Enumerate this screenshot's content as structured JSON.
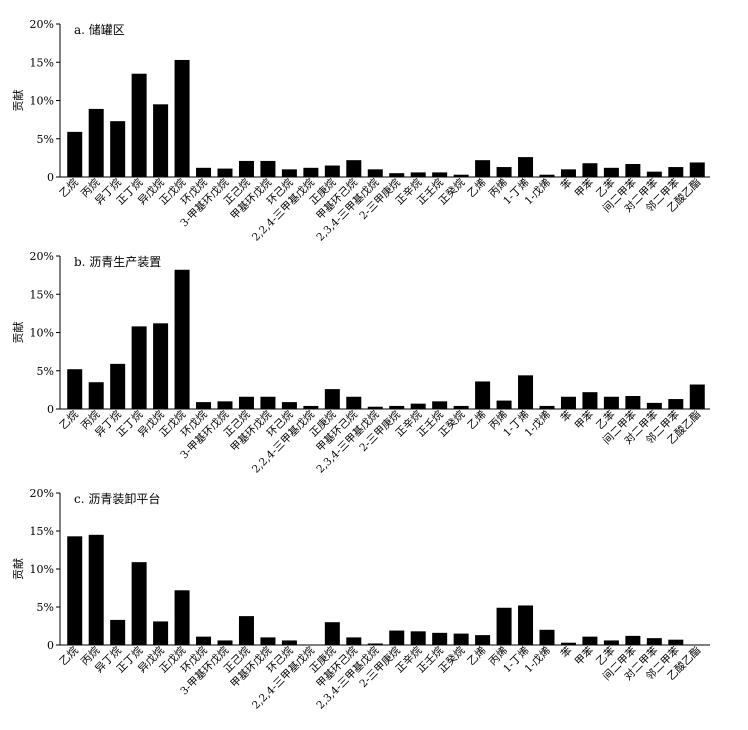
{
  "chart_data": [
    {
      "type": "bar",
      "title": "a. 储罐区",
      "ylabel": "贡献",
      "xlabel": "",
      "ylim": [
        0,
        20
      ],
      "yticks": [
        "0",
        "5%",
        "10%",
        "15%",
        "20%"
      ],
      "categories": [
        "乙烷",
        "丙烷",
        "异丁烷",
        "正丁烷",
        "异戊烷",
        "正戊烷",
        "环戊烷",
        "3-甲基环戊烷",
        "正己烷",
        "甲基环戊烷",
        "环己烷",
        "2,2,4-三甲基戊烷",
        "正庚烷",
        "甲基环己烷",
        "2,3,4-三甲基戊烷",
        "2-三甲庚烷",
        "正辛烷",
        "正壬烷",
        "正癸烷",
        "乙烯",
        "丙烯",
        "1-丁烯",
        "1-戊烯",
        "苯",
        "甲苯",
        "乙苯",
        "间二甲苯",
        "对二甲苯",
        "邻二甲苯",
        "乙酸乙酯"
      ],
      "values": [
        5.9,
        8.9,
        7.3,
        13.5,
        9.5,
        15.3,
        1.2,
        1.1,
        2.1,
        2.1,
        1.0,
        1.2,
        1.5,
        2.2,
        1.0,
        0.5,
        0.6,
        0.6,
        0.3,
        2.2,
        1.3,
        2.6,
        0.3,
        1.0,
        1.8,
        1.2,
        1.7,
        0.7,
        1.3,
        1.9
      ]
    },
    {
      "type": "bar",
      "title": "b. 沥青生产装置",
      "ylabel": "贡献",
      "xlabel": "",
      "ylim": [
        0,
        20
      ],
      "yticks": [
        "0",
        "5%",
        "10%",
        "15%",
        "20%"
      ],
      "categories": [
        "乙烷",
        "丙烷",
        "异丁烷",
        "正丁烷",
        "异戊烷",
        "正戊烷",
        "环戊烷",
        "3-甲基环戊烷",
        "正己烷",
        "甲基环戊烷",
        "环己烷",
        "2,2,4-三甲基戊烷",
        "正庚烷",
        "甲基环己烷",
        "2,3,4-三甲基戊烷",
        "2-三甲庚烷",
        "正辛烷",
        "正壬烷",
        "正癸烷",
        "乙烯",
        "丙烯",
        "1-丁烯",
        "1-戊烯",
        "苯",
        "甲苯",
        "乙苯",
        "间二甲苯",
        "对二甲苯",
        "邻二甲苯",
        "乙酸乙酯"
      ],
      "values": [
        5.2,
        3.5,
        5.9,
        10.8,
        11.2,
        18.2,
        0.9,
        1.0,
        1.6,
        1.6,
        0.9,
        0.4,
        2.6,
        1.6,
        0.3,
        0.4,
        0.7,
        1.0,
        0.4,
        3.6,
        1.1,
        4.4,
        0.4,
        1.6,
        2.2,
        1.6,
        1.7,
        0.8,
        1.3,
        3.2
      ]
    },
    {
      "type": "bar",
      "title": "c. 沥青装卸平台",
      "ylabel": "贡献",
      "xlabel": "",
      "ylim": [
        0,
        20
      ],
      "yticks": [
        "0",
        "5%",
        "10%",
        "15%",
        "20%"
      ],
      "categories": [
        "乙烷",
        "丙烷",
        "异丁烷",
        "正丁烷",
        "异戊烷",
        "正戊烷",
        "环戊烷",
        "3-甲基环戊烷",
        "正己烷",
        "甲基环戊烷",
        "环己烷",
        "2,2,4-三甲基戊烷",
        "正庚烷",
        "甲基环己烷",
        "2,3,4-三甲基戊烷",
        "2-三甲庚烷",
        "正辛烷",
        "正壬烷",
        "正癸烷",
        "乙烯",
        "丙烯",
        "1-丁烯",
        "1-戊烯",
        "苯",
        "甲苯",
        "乙苯",
        "间二甲苯",
        "对二甲苯",
        "邻二甲苯",
        "乙酸乙酯"
      ],
      "values": [
        14.3,
        14.5,
        3.3,
        10.9,
        3.1,
        7.2,
        1.1,
        0.6,
        3.8,
        1.0,
        0.6,
        0.0,
        3.0,
        1.0,
        0.2,
        1.9,
        1.8,
        1.6,
        1.5,
        1.3,
        4.9,
        5.2,
        2.0,
        0.3,
        1.1,
        0.6,
        1.2,
        0.9,
        0.7,
        0.0
      ]
    }
  ]
}
